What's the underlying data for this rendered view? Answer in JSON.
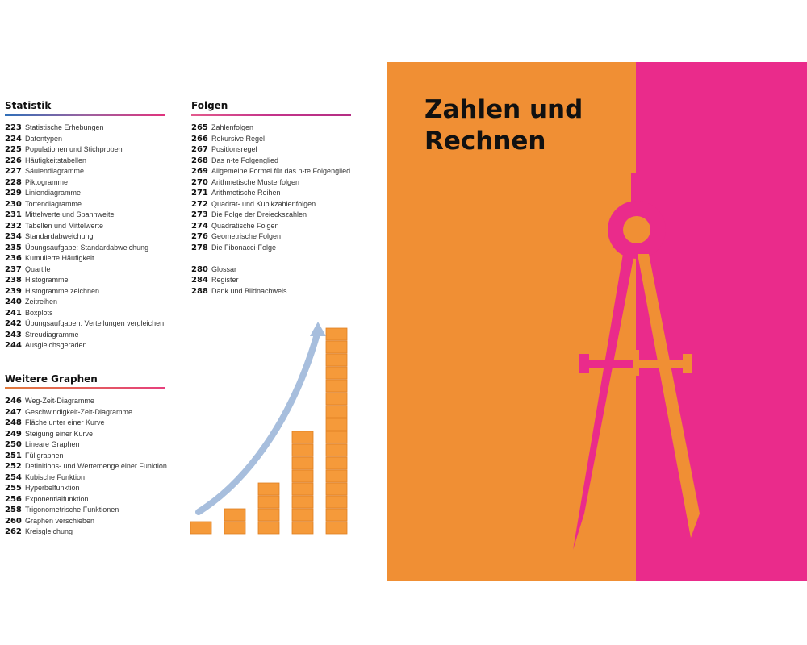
{
  "statistik": {
    "heading": "Statistik",
    "entries": [
      {
        "num": "223",
        "title": "Statistische Erhebungen"
      },
      {
        "num": "224",
        "title": "Datentypen"
      },
      {
        "num": "225",
        "title": "Populationen und Stichproben"
      },
      {
        "num": "226",
        "title": "Häufigkeitstabellen"
      },
      {
        "num": "227",
        "title": "Säulendiagramme"
      },
      {
        "num": "228",
        "title": "Piktogramme"
      },
      {
        "num": "229",
        "title": "Liniendiagramme"
      },
      {
        "num": "230",
        "title": "Tortendiagramme"
      },
      {
        "num": "231",
        "title": "Mittelwerte und Spannweite"
      },
      {
        "num": "232",
        "title": "Tabellen und Mittelwerte"
      },
      {
        "num": "234",
        "title": "Standardabweichung"
      },
      {
        "num": "235",
        "title": "Übungsaufgabe: Standardabweichung"
      },
      {
        "num": "236",
        "title": "Kumulierte Häufigkeit"
      },
      {
        "num": "237",
        "title": "Quartile"
      },
      {
        "num": "238",
        "title": "Histogramme"
      },
      {
        "num": "239",
        "title": "Histogramme zeichnen"
      },
      {
        "num": "240",
        "title": "Zeitreihen"
      },
      {
        "num": "241",
        "title": "Boxplots"
      },
      {
        "num": "242",
        "title": "Übungsaufgaben: Verteilungen vergleichen"
      },
      {
        "num": "243",
        "title": "Streudiagramme"
      },
      {
        "num": "244",
        "title": "Ausgleichsgeraden"
      }
    ]
  },
  "weitere": {
    "heading": "Weitere Graphen",
    "entries": [
      {
        "num": "246",
        "title": "Weg-Zeit-Diagramme"
      },
      {
        "num": "247",
        "title": "Geschwindigkeit-Zeit-Diagramme"
      },
      {
        "num": "248",
        "title": "Fläche unter einer Kurve"
      },
      {
        "num": "249",
        "title": "Steigung einer Kurve"
      },
      {
        "num": "250",
        "title": "Lineare Graphen"
      },
      {
        "num": "251",
        "title": "Füllgraphen"
      },
      {
        "num": "252",
        "title": "Definitions- und Wertemenge einer Funktion"
      },
      {
        "num": "254",
        "title": "Kubische Funktion"
      },
      {
        "num": "255",
        "title": "Hyperbelfunktion"
      },
      {
        "num": "256",
        "title": "Exponentialfunktion"
      },
      {
        "num": "258",
        "title": "Trigonometrische Funktionen"
      },
      {
        "num": "260",
        "title": "Graphen verschieben"
      },
      {
        "num": "262",
        "title": "Kreisgleichung"
      }
    ]
  },
  "folgen": {
    "heading": "Folgen",
    "entries": [
      {
        "num": "265",
        "title": "Zahlenfolgen"
      },
      {
        "num": "266",
        "title": "Rekursive Regel"
      },
      {
        "num": "267",
        "title": "Positionsregel"
      },
      {
        "num": "268",
        "title": "Das n-te Folgenglied"
      },
      {
        "num": "269",
        "title": "Allgemeine Formel für das n-te Folgenglied"
      },
      {
        "num": "270",
        "title": "Arithmetische Musterfolgen"
      },
      {
        "num": "271",
        "title": "Arithmetische Reihen"
      },
      {
        "num": "272",
        "title": "Quadrat- und Kubikzahlenfolgen"
      },
      {
        "num": "273",
        "title": "Die Folge der Dreieckszahlen"
      },
      {
        "num": "274",
        "title": "Quadratische Folgen"
      },
      {
        "num": "276",
        "title": "Geometrische Folgen"
      },
      {
        "num": "278",
        "title": "Die Fibonacci-Folge"
      }
    ],
    "extra_entries": [
      {
        "num": "280",
        "title": "Glossar"
      },
      {
        "num": "284",
        "title": "Register"
      },
      {
        "num": "288",
        "title": "Dank und Bildnachweis"
      }
    ]
  },
  "illustration": {
    "column_heights_in_blocks": [
      1,
      2,
      4,
      8,
      16
    ],
    "block_color": "#f59a3a",
    "arrow_color": "#a7bedd"
  },
  "cover": {
    "title": "Zahlen und\nRechnen",
    "orange": "#f08f34",
    "pink": "#ea2b8b",
    "compass_icon": "drawing-compass-icon"
  }
}
